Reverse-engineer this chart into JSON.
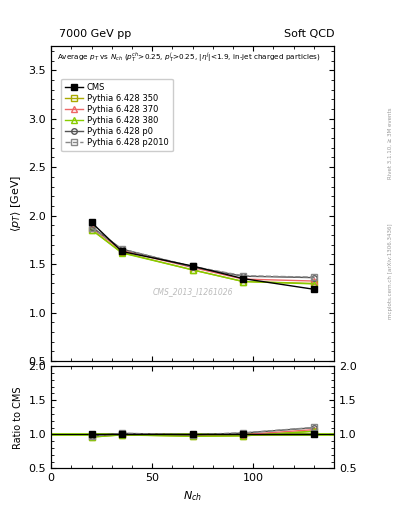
{
  "title_left": "7000 GeV pp",
  "title_right": "Soft QCD",
  "right_label_top": "Rivet 3.1.10, ≥ 3M events",
  "right_label_bottom": "mcplots.cern.ch [arXiv:1306.3436]",
  "watermark": "CMS_2013_I1261026",
  "ylabel_main": "⟨p_T⟩ [GeV]",
  "ylabel_ratio": "Ratio to CMS",
  "xlabel": "N_{ch}",
  "ylim_main": [
    0.5,
    3.75
  ],
  "ylim_ratio": [
    0.5,
    2.0
  ],
  "yticks_main": [
    0.5,
    1.0,
    1.5,
    2.0,
    2.5,
    3.0,
    3.5
  ],
  "yticks_ratio": [
    0.5,
    1.0,
    1.5,
    2.0
  ],
  "xlim": [
    0,
    140
  ],
  "xticks": [
    0,
    50,
    100
  ],
  "nch": [
    20,
    35,
    70,
    95,
    130
  ],
  "CMS": [
    1.93,
    1.63,
    1.48,
    1.35,
    1.24
  ],
  "p350": [
    1.855,
    1.62,
    1.44,
    1.32,
    1.3
  ],
  "p370": [
    1.875,
    1.64,
    1.465,
    1.345,
    1.325
  ],
  "p380": [
    1.855,
    1.615,
    1.44,
    1.32,
    1.295
  ],
  "p0": [
    1.885,
    1.655,
    1.47,
    1.375,
    1.36
  ],
  "p2010": [
    1.875,
    1.655,
    1.475,
    1.38,
    1.365
  ],
  "ratio_CMS": [
    1.0,
    1.0,
    1.0,
    1.0,
    1.0
  ],
  "ratio_p350": [
    0.96,
    0.994,
    0.972,
    0.978,
    1.048
  ],
  "ratio_p370": [
    0.971,
    1.006,
    0.99,
    0.996,
    1.069
  ],
  "ratio_p380": [
    0.96,
    0.991,
    0.972,
    0.978,
    1.044
  ],
  "ratio_p0": [
    0.976,
    1.015,
    0.993,
    1.019,
    1.097
  ],
  "ratio_p2010": [
    0.971,
    1.015,
    0.997,
    1.022,
    1.101
  ],
  "color_CMS": "#000000",
  "color_p350": "#aaaa00",
  "color_p370": "#ee6666",
  "color_p380": "#88cc00",
  "color_p0": "#555555",
  "color_p2010": "#888888",
  "bg_color": "#ffffff"
}
